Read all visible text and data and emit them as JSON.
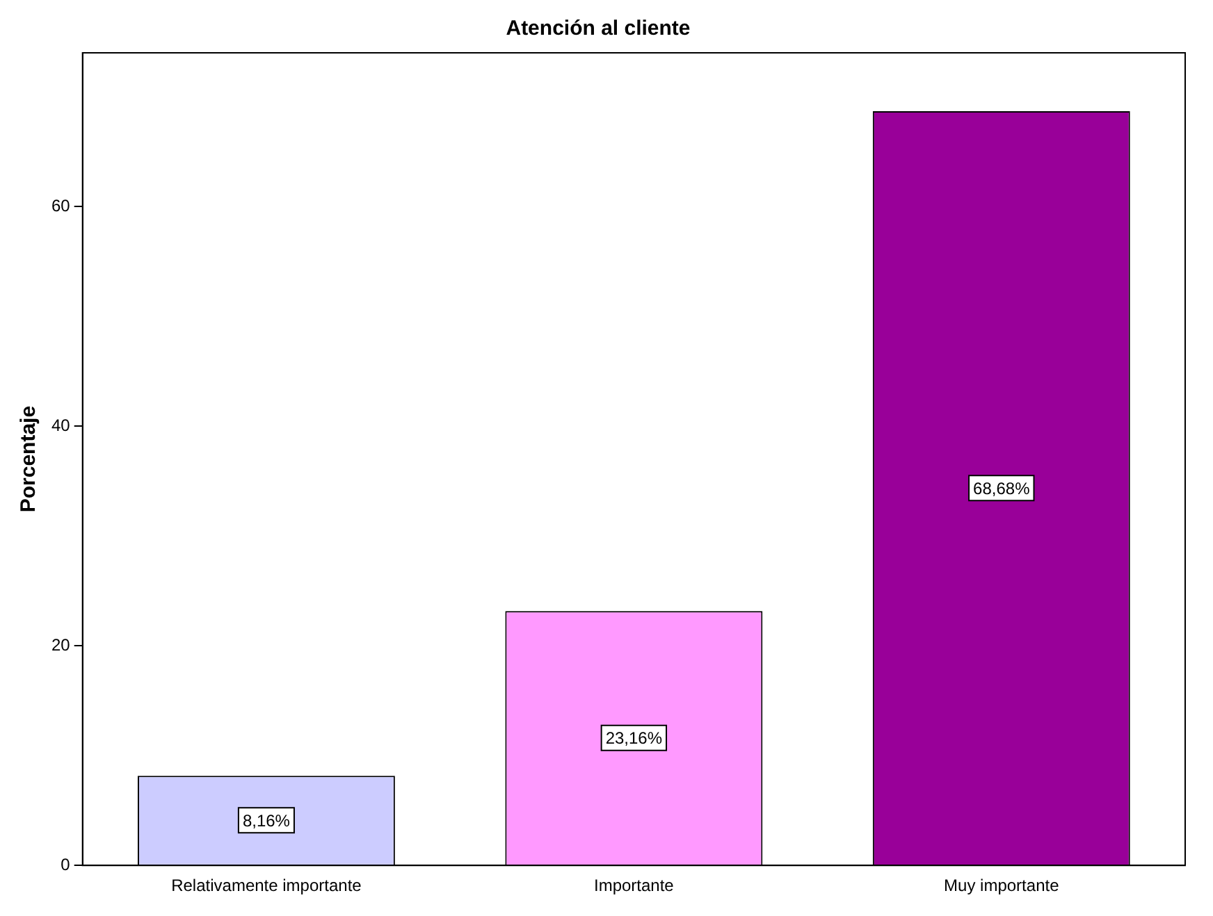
{
  "chart_data": {
    "type": "bar",
    "title": "Atención al cliente",
    "ylabel": "Porcentaje",
    "categories": [
      "Relativamente importante",
      "Importante",
      "Muy importante"
    ],
    "values": [
      8.16,
      23.16,
      68.68
    ],
    "colors": [
      "#ccccff",
      "#ff99ff",
      "#990099"
    ],
    "value_labels": [
      "8,16%",
      "23,16%",
      "68,68%"
    ],
    "ylim": [
      0,
      74
    ],
    "yticks": [
      0,
      20,
      40,
      60
    ],
    "grid": false,
    "legend": false
  }
}
